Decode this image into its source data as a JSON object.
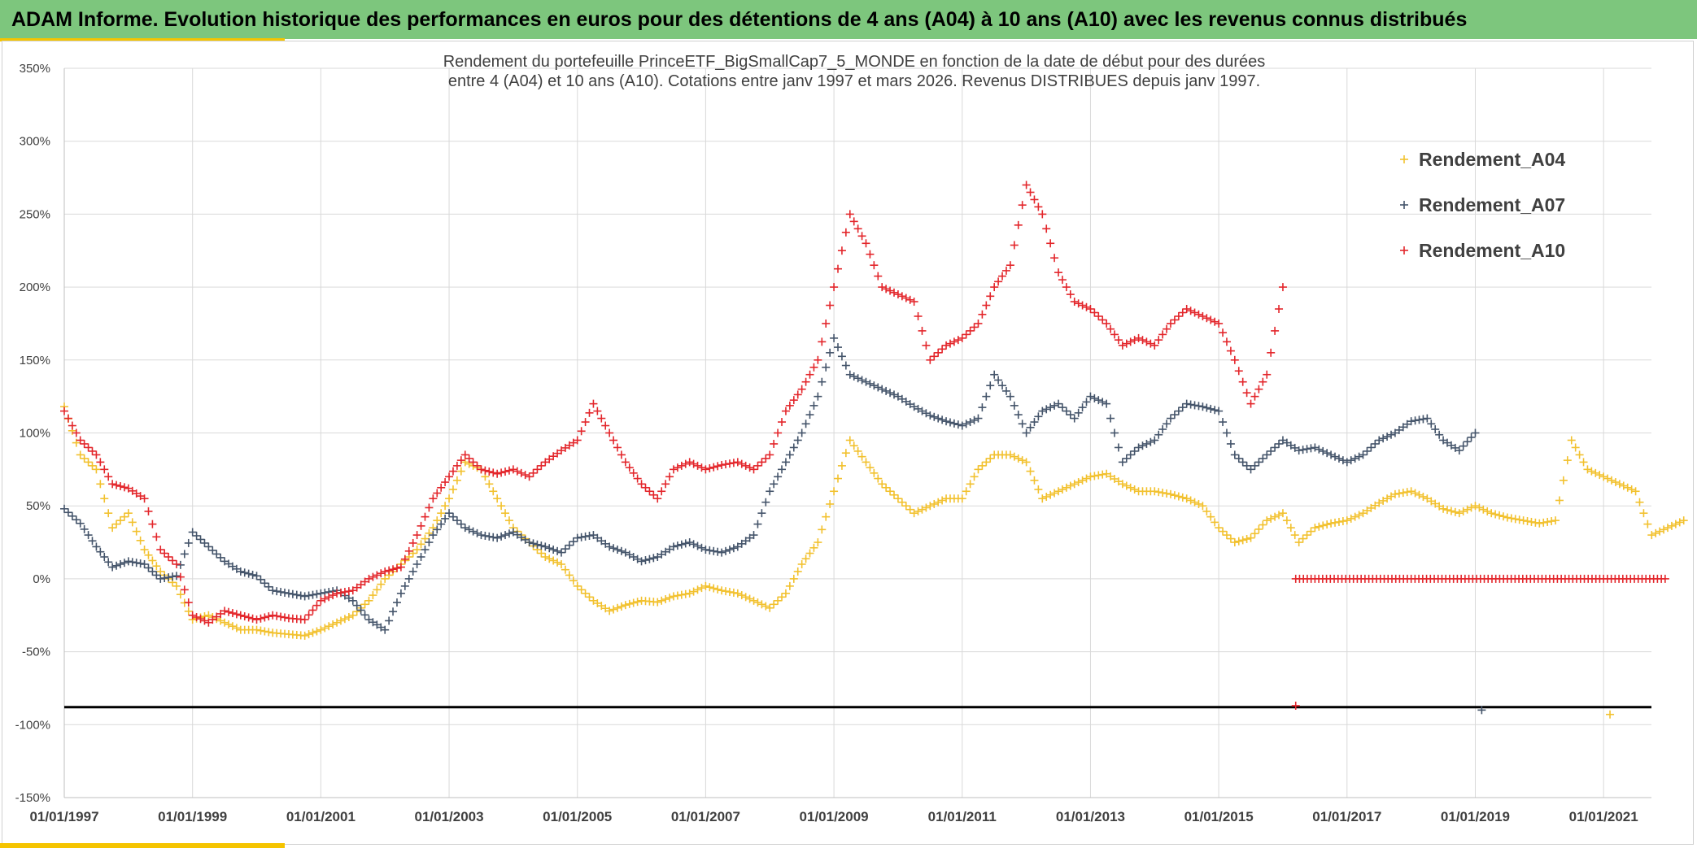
{
  "header": {
    "title": "ADAM Informe. Evolution historique des performances en euros pour des détentions de 4 ans (A04) à 10 ans (A10) avec les revenus connus distribués"
  },
  "colors": {
    "header_bg": "#7dc67d",
    "accent_stripe": "#f5c400",
    "A04": "#f2c12e",
    "A07": "#44546a",
    "A10": "#e3262b",
    "grid": "#d9d9d9",
    "ref_line": "#000000"
  },
  "chart_data": {
    "type": "scatter",
    "title_lines": [
      "Rendement du portefeuille PrinceETF_BigSmallCap7_5_MONDE  en fonction de la date de début pour des durées",
      "entre 4 (A04) et 10 ans (A10). Cotations entre janv 1997 et mars 2026. Revenus DISTRIBUES depuis janv 1997."
    ],
    "xlabel": "",
    "ylabel": "",
    "x_range": [
      1997.0,
      2022.0
    ],
    "x_ticks": [
      "01/01/1997",
      "01/01/1999",
      "01/01/2001",
      "01/01/2003",
      "01/01/2005",
      "01/01/2007",
      "01/01/2009",
      "01/01/2011",
      "01/01/2013",
      "01/01/2015",
      "01/01/2017",
      "01/01/2019",
      "01/01/2021"
    ],
    "y_range": [
      -150,
      350
    ],
    "y_ticks": [
      "350%",
      "300%",
      "250%",
      "200%",
      "150%",
      "100%",
      "50%",
      "0%",
      "-50%",
      "-100%",
      "-150%"
    ],
    "reference_line_y": -88,
    "legend_position": "top-right",
    "series": [
      {
        "name": "Rendement_A04",
        "color": "#f2c12e",
        "x": [
          1997.0,
          1997.25,
          1997.5,
          1997.75,
          1998.0,
          1998.25,
          1998.5,
          1998.75,
          1999.0,
          1999.25,
          1999.5,
          1999.75,
          2000.0,
          2000.25,
          2000.5,
          2000.75,
          2001.0,
          2001.25,
          2001.5,
          2001.75,
          2002.0,
          2002.25,
          2002.5,
          2002.75,
          2003.0,
          2003.25,
          2003.5,
          2003.75,
          2004.0,
          2004.25,
          2004.5,
          2004.75,
          2005.0,
          2005.25,
          2005.5,
          2005.75,
          2006.0,
          2006.25,
          2006.5,
          2006.75,
          2007.0,
          2007.25,
          2007.5,
          2007.75,
          2008.0,
          2008.25,
          2008.5,
          2008.75,
          2009.0,
          2009.25,
          2009.5,
          2009.75,
          2010.0,
          2010.25,
          2010.5,
          2010.75,
          2011.0,
          2011.25,
          2011.5,
          2011.75,
          2012.0,
          2012.25,
          2012.5,
          2012.75,
          2013.0,
          2013.25,
          2013.5,
          2013.75,
          2014.0,
          2014.25,
          2014.5,
          2014.75,
          2015.0,
          2015.25,
          2015.5,
          2015.75,
          2016.0,
          2016.25,
          2016.5,
          2016.75,
          2017.0,
          2017.25,
          2017.5,
          2017.75,
          2018.0,
          2018.25,
          2018.5,
          2018.75,
          2019.0,
          2019.25,
          2019.5,
          2019.75,
          2020.0,
          2020.25,
          2020.5,
          2020.75,
          2021.0,
          2021.25,
          2021.5,
          2021.75,
          2022.0,
          2022.25
        ],
        "y": [
          118,
          85,
          75,
          35,
          45,
          20,
          5,
          -5,
          -28,
          -25,
          -30,
          -35,
          -35,
          -37,
          -38,
          -39,
          -35,
          -30,
          -25,
          -15,
          0,
          10,
          20,
          35,
          55,
          80,
          75,
          55,
          35,
          25,
          15,
          10,
          -5,
          -15,
          -22,
          -18,
          -15,
          -16,
          -12,
          -10,
          -5,
          -8,
          -10,
          -15,
          -20,
          -10,
          10,
          25,
          60,
          95,
          80,
          65,
          55,
          45,
          50,
          55,
          55,
          75,
          85,
          85,
          80,
          55,
          60,
          65,
          70,
          72,
          65,
          60,
          60,
          58,
          55,
          50,
          35,
          25,
          28,
          40,
          45,
          25,
          35,
          38,
          40,
          45,
          52,
          58,
          60,
          55,
          48,
          45,
          50,
          45,
          42,
          40,
          38,
          40,
          95,
          75,
          70,
          65,
          60,
          30,
          35,
          40
        ]
      },
      {
        "name": "Rendement_A07",
        "color": "#44546a",
        "x": [
          1997.0,
          1997.25,
          1997.5,
          1997.75,
          1998.0,
          1998.25,
          1998.5,
          1998.75,
          1999.0,
          1999.25,
          1999.5,
          1999.75,
          2000.0,
          2000.25,
          2000.5,
          2000.75,
          2001.0,
          2001.25,
          2001.5,
          2001.75,
          2002.0,
          2002.25,
          2002.5,
          2002.75,
          2003.0,
          2003.25,
          2003.5,
          2003.75,
          2004.0,
          2004.25,
          2004.5,
          2004.75,
          2005.0,
          2005.25,
          2005.5,
          2005.75,
          2006.0,
          2006.25,
          2006.5,
          2006.75,
          2007.0,
          2007.25,
          2007.5,
          2007.75,
          2008.0,
          2008.25,
          2008.5,
          2008.75,
          2009.0,
          2009.25,
          2009.5,
          2009.75,
          2010.0,
          2010.25,
          2010.5,
          2010.75,
          2011.0,
          2011.25,
          2011.5,
          2011.75,
          2012.0,
          2012.25,
          2012.5,
          2012.75,
          2013.0,
          2013.25,
          2013.5,
          2013.75,
          2014.0,
          2014.25,
          2014.5,
          2014.75,
          2015.0,
          2015.25,
          2015.5,
          2015.75,
          2016.0,
          2016.25,
          2016.5,
          2016.75,
          2017.0,
          2017.25,
          2017.5,
          2017.75,
          2018.0,
          2018.25,
          2018.5,
          2018.75,
          2019.0
        ],
        "y": [
          48,
          38,
          22,
          8,
          12,
          10,
          0,
          2,
          32,
          22,
          12,
          5,
          2,
          -8,
          -10,
          -12,
          -10,
          -8,
          -15,
          -28,
          -35,
          -10,
          10,
          30,
          45,
          35,
          30,
          28,
          32,
          25,
          22,
          18,
          28,
          30,
          22,
          18,
          12,
          15,
          22,
          25,
          20,
          18,
          22,
          30,
          60,
          80,
          100,
          125,
          165,
          140,
          135,
          130,
          125,
          118,
          112,
          108,
          105,
          110,
          140,
          125,
          100,
          115,
          120,
          110,
          125,
          120,
          80,
          90,
          95,
          110,
          120,
          118,
          115,
          85,
          75,
          85,
          95,
          88,
          90,
          85,
          80,
          85,
          95,
          100,
          108,
          110,
          95,
          88,
          100
        ]
      },
      {
        "name": "Rendement_A10",
        "color": "#e3262b",
        "x": [
          1997.0,
          1997.25,
          1997.5,
          1997.75,
          1998.0,
          1998.25,
          1998.5,
          1998.75,
          1999.0,
          1999.25,
          1999.5,
          1999.75,
          2000.0,
          2000.25,
          2000.5,
          2000.75,
          2001.0,
          2001.25,
          2001.5,
          2001.75,
          2002.0,
          2002.25,
          2002.5,
          2002.75,
          2003.0,
          2003.25,
          2003.5,
          2003.75,
          2004.0,
          2004.25,
          2004.5,
          2004.75,
          2005.0,
          2005.25,
          2005.5,
          2005.75,
          2006.0,
          2006.25,
          2006.5,
          2006.75,
          2007.0,
          2007.25,
          2007.5,
          2007.75,
          2008.0,
          2008.25,
          2008.5,
          2008.75,
          2009.0,
          2009.25,
          2009.5,
          2009.75,
          2010.0,
          2010.25,
          2010.5,
          2010.75,
          2011.0,
          2011.25,
          2011.5,
          2011.75,
          2012.0,
          2012.25,
          2012.5,
          2012.75,
          2013.0,
          2013.25,
          2013.5,
          2013.75,
          2014.0,
          2014.25,
          2014.5,
          2014.75,
          2015.0,
          2015.25,
          2015.5,
          2015.75,
          2016.0
        ],
        "y": [
          115,
          95,
          85,
          65,
          62,
          55,
          20,
          10,
          -25,
          -30,
          -22,
          -25,
          -28,
          -25,
          -27,
          -28,
          -15,
          -10,
          -8,
          0,
          5,
          8,
          30,
          55,
          70,
          85,
          75,
          72,
          75,
          70,
          80,
          88,
          95,
          120,
          100,
          80,
          65,
          55,
          75,
          80,
          75,
          78,
          80,
          75,
          85,
          115,
          130,
          150,
          200,
          250,
          230,
          200,
          195,
          190,
          150,
          160,
          165,
          175,
          200,
          215,
          270,
          250,
          210,
          190,
          185,
          175,
          160,
          165,
          160,
          175,
          185,
          180,
          175,
          150,
          120,
          140,
          200
        ]
      }
    ],
    "flat_zero_segments": [
      {
        "series": "Rendement_A10",
        "x_start": 2016.2,
        "x_end": 2022.0,
        "y": 0
      }
    ],
    "outliers": [
      {
        "series": "Rendement_A10",
        "x": 2016.2,
        "y": -87
      },
      {
        "series": "Rendement_A07",
        "x": 2019.1,
        "y": -90
      },
      {
        "series": "Rendement_A04",
        "x": 2021.1,
        "y": -93
      }
    ]
  }
}
